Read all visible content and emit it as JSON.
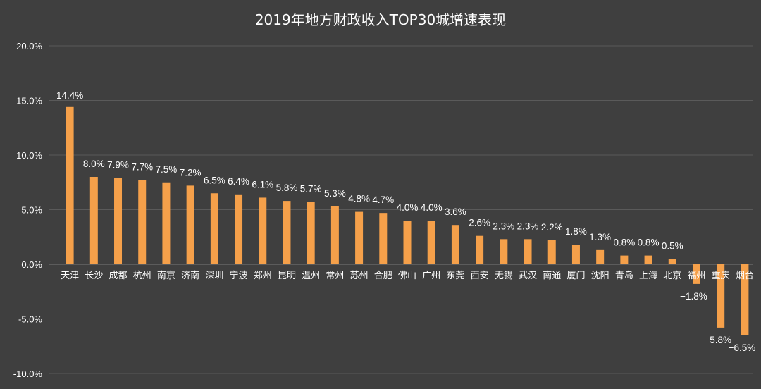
{
  "chart_data": {
    "type": "bar",
    "title": "2019年地方财政收入TOP30城增速表现",
    "categories": [
      "天津",
      "长沙",
      "成都",
      "杭州",
      "南京",
      "济南",
      "深圳",
      "宁波",
      "郑州",
      "昆明",
      "温州",
      "常州",
      "苏州",
      "合肥",
      "佛山",
      "广州",
      "东莞",
      "西安",
      "无锡",
      "武汉",
      "南通",
      "厦门",
      "沈阳",
      "青岛",
      "上海",
      "北京",
      "福州",
      "重庆",
      "烟台"
    ],
    "values": [
      14.4,
      8.0,
      7.9,
      7.7,
      7.5,
      7.2,
      6.5,
      6.4,
      6.1,
      5.8,
      5.7,
      5.3,
      4.8,
      4.7,
      4.0,
      4.0,
      3.6,
      2.6,
      2.3,
      2.3,
      2.2,
      1.8,
      1.3,
      0.8,
      0.8,
      0.5,
      -1.8,
      -5.8,
      -6.5
    ],
    "value_labels": [
      "14.4%",
      "8.0%",
      "7.9%",
      "7.7%",
      "7.5%",
      "7.2%",
      "6.5%",
      "6.4%",
      "6.1%",
      "5.8%",
      "5.7%",
      "5.3%",
      "4.8%",
      "4.7%",
      "4.0%",
      "4.0%",
      "3.6%",
      "2.6%",
      "2.3%",
      "2.3%",
      "2.2%",
      "1.8%",
      "1.3%",
      "0.8%",
      "0.8%",
      "0.5%",
      "−1.8%",
      "−5.8%",
      "−6.5%"
    ],
    "y_ticks": [
      20,
      15,
      10,
      5,
      0,
      -5,
      -10
    ],
    "y_tick_labels": [
      "20.0%",
      "15.0%",
      "10.0%",
      "5.0%",
      "0.0%",
      "-5.0%",
      "-10.0%"
    ],
    "ylim": [
      -10,
      20
    ],
    "xlabel": "",
    "ylabel": "",
    "grid": true,
    "legend": "none",
    "colors": {
      "background": "#3f3f3f",
      "bar": "#f5a04a",
      "text": "#ffffff",
      "grid": "#5a5a5a"
    }
  }
}
